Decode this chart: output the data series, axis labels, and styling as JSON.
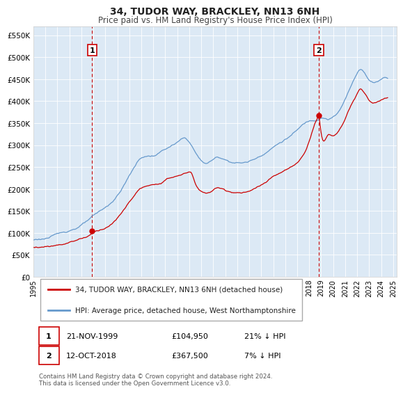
{
  "title": "34, TUDOR WAY, BRACKLEY, NN13 6NH",
  "subtitle": "Price paid vs. HM Land Registry's House Price Index (HPI)",
  "ylabel_ticks": [
    "£0",
    "£50K",
    "£100K",
    "£150K",
    "£200K",
    "£250K",
    "£300K",
    "£350K",
    "£400K",
    "£450K",
    "£500K",
    "£550K"
  ],
  "ytick_vals": [
    0,
    50000,
    100000,
    150000,
    200000,
    250000,
    300000,
    350000,
    400000,
    450000,
    500000,
    550000
  ],
  "ylim": [
    0,
    570000
  ],
  "xlim_start": 1995.0,
  "xlim_end": 2025.3,
  "background_color": "#ffffff",
  "plot_bg_color": "#dce9f5",
  "grid_color": "#ffffff",
  "red_line_color": "#cc0000",
  "blue_line_color": "#6699cc",
  "transaction1": {
    "year_x": 1999.9,
    "price": 104950,
    "label": "1"
  },
  "transaction2": {
    "year_x": 2018.8,
    "price": 367500,
    "label": "2"
  },
  "dashed_line_color": "#cc0000",
  "legend_label_red": "34, TUDOR WAY, BRACKLEY, NN13 6NH (detached house)",
  "legend_label_blue": "HPI: Average price, detached house, West Northamptonshire",
  "table_row1": [
    "1",
    "21-NOV-1999",
    "£104,950",
    "21% ↓ HPI"
  ],
  "table_row2": [
    "2",
    "12-OCT-2018",
    "£367,500",
    "7% ↓ HPI"
  ],
  "footer": "Contains HM Land Registry data © Crown copyright and database right 2024.\nThis data is licensed under the Open Government Licence v3.0."
}
